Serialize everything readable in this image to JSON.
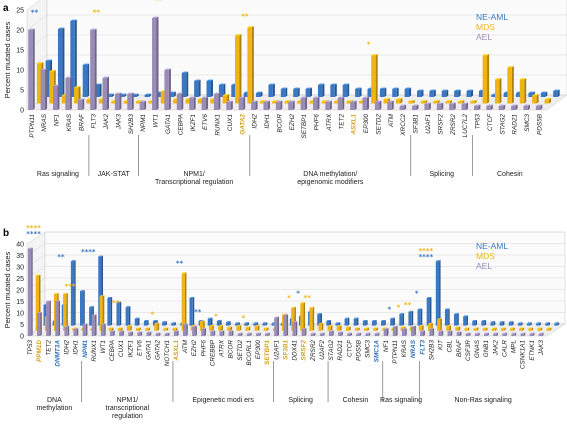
{
  "colors": {
    "ne_aml": "#3a78c3",
    "mds": "#f0b415",
    "ael": "#9a8cb8"
  },
  "chart_data": [
    {
      "panel": "a",
      "type": "bar",
      "ylabel": "Percent mutated cases",
      "ylim": [
        0,
        25
      ],
      "yticks": [
        0,
        5,
        10,
        15,
        20,
        25
      ],
      "legend": {
        "placement": "top-right",
        "entries": [
          "NE-AML",
          "MDS",
          "AEL"
        ]
      },
      "series_order": [
        "AEL",
        "MDS",
        "NE-AML"
      ],
      "categories": [
        {
          "gene": "PTPN11",
          "AEL": 20.0,
          "MDS": 10.0,
          "NE-AML": 9.0,
          "stars_b": "**"
        },
        {
          "gene": "NRAS",
          "AEL": 10.0,
          "MDS": 8.0,
          "NE-AML": 17.0
        },
        {
          "gene": "NF1",
          "AEL": 6.0,
          "MDS": 2.0,
          "NE-AML": 19.0
        },
        {
          "gene": "KRAS",
          "AEL": 8.0,
          "MDS": 4.0,
          "NE-AML": 8.0
        },
        {
          "gene": "BRAF",
          "AEL": 2.5,
          "MDS": 1.0,
          "NE-AML": 3.0
        },
        {
          "gene": "FLT3",
          "AEL": 20.0,
          "MDS": 1.0,
          "NE-AML": 0.5,
          "stars_y": "**"
        },
        {
          "gene": "JAK2",
          "AEL": 8.0,
          "MDS": 0.5,
          "NE-AML": 0.5
        },
        {
          "gene": "JAK3",
          "AEL": 4.0,
          "MDS": 0.5,
          "NE-AML": 0.5
        },
        {
          "gene": "SH2B3",
          "AEL": 4.0,
          "MDS": 0.5,
          "NE-AML": 0.5
        },
        {
          "gene": "NPM1",
          "AEL": 2.0,
          "MDS": 0.5,
          "NE-AML": 1.0
        },
        {
          "gene": "WT1",
          "AEL": 23.0,
          "MDS": 3.0,
          "NE-AML": 1.0,
          "stars_y": "**"
        },
        {
          "gene": "GATA1",
          "AEL": 10.0,
          "MDS": 1.0,
          "NE-AML": 6.0
        },
        {
          "gene": "CEBPA",
          "AEL": 4.0,
          "MDS": 1.0,
          "NE-AML": 4.0
        },
        {
          "gene": "IKZF1",
          "AEL": 3.0,
          "MDS": 1.0,
          "NE-AML": 4.0
        },
        {
          "gene": "ETV6",
          "AEL": 3.0,
          "MDS": 1.0,
          "NE-AML": 3.0
        },
        {
          "gene": "RUNX1",
          "AEL": 4.0,
          "MDS": 2.0,
          "NE-AML": 3.0
        },
        {
          "gene": "CUX1",
          "AEL": 2.0,
          "MDS": 17.0,
          "NE-AML": 1.0
        },
        {
          "gene": "GATA2",
          "AEL": 3.0,
          "MDS": 19.0,
          "NE-AML": 1.0,
          "stars_y": "**",
          "highlight": "y"
        },
        {
          "gene": "IDH2",
          "AEL": 2.0,
          "MDS": 0.5,
          "NE-AML": 3.0
        },
        {
          "gene": "IDH1",
          "AEL": 2.0,
          "MDS": 0.5,
          "NE-AML": 2.0
        },
        {
          "gene": "BCOR",
          "AEL": 2.0,
          "MDS": 0.5,
          "NE-AML": 2.0
        },
        {
          "gene": "EZH2",
          "AEL": 2.0,
          "MDS": 0.5,
          "NE-AML": 2.0
        },
        {
          "gene": "SETBP1",
          "AEL": 3.0,
          "MDS": 0.5,
          "NE-AML": 3.0
        },
        {
          "gene": "PHF6",
          "AEL": 3.0,
          "MDS": 0.5,
          "NE-AML": 3.0
        },
        {
          "gene": "ATRX",
          "AEL": 2.0,
          "MDS": 0.5,
          "NE-AML": 3.0
        },
        {
          "gene": "TET2",
          "AEL": 3.0,
          "MDS": 0.5,
          "NE-AML": 2.0
        },
        {
          "gene": "ASXL1",
          "AEL": 2.0,
          "MDS": 0.5,
          "NE-AML": 2.0,
          "highlight": "y"
        },
        {
          "gene": "EP300",
          "AEL": 3.0,
          "MDS": 12.0,
          "NE-AML": 2.0,
          "stars_y": "*"
        },
        {
          "gene": "SETD2",
          "AEL": 2.0,
          "MDS": 1.0,
          "NE-AML": 2.0
        },
        {
          "gene": "ATM",
          "AEL": 2.0,
          "MDS": 1.0,
          "NE-AML": 2.0
        },
        {
          "gene": "XRCC2",
          "AEL": 1.0,
          "MDS": 0.5,
          "NE-AML": 1.5
        },
        {
          "gene": "SF3B1",
          "AEL": 1.0,
          "MDS": 0.5,
          "NE-AML": 1.5
        },
        {
          "gene": "U2AF1",
          "AEL": 1.5,
          "MDS": 0.5,
          "NE-AML": 1.5
        },
        {
          "gene": "SRSF2",
          "AEL": 1.5,
          "MDS": 0.5,
          "NE-AML": 1.5
        },
        {
          "gene": "ZRSR2",
          "AEL": 1.5,
          "MDS": 0.5,
          "NE-AML": 1.5
        },
        {
          "gene": "LUC7L2",
          "AEL": 1.5,
          "MDS": 0.5,
          "NE-AML": 1.5
        },
        {
          "gene": "TP53",
          "AEL": 1.0,
          "MDS": 12.0,
          "NE-AML": 0.5
        },
        {
          "gene": "CTCF",
          "AEL": 1.0,
          "MDS": 6.0,
          "NE-AML": 1.0
        },
        {
          "gene": "STAG2",
          "AEL": 1.0,
          "MDS": 9.0,
          "NE-AML": 1.0
        },
        {
          "gene": "RAD21",
          "AEL": 1.0,
          "MDS": 6.0,
          "NE-AML": 1.0
        },
        {
          "gene": "SMC3",
          "AEL": 1.0,
          "MDS": 2.0,
          "NE-AML": 1.0
        },
        {
          "gene": "PDS5B",
          "AEL": 1.0,
          "MDS": 1.0,
          "NE-AML": 1.5
        }
      ],
      "groups": [
        {
          "label": "Ras signaling",
          "from": 0,
          "to": 4
        },
        {
          "label": "JAK-STAT",
          "from": 5,
          "to": 8
        },
        {
          "label": "NPM1/",
          "label2": "Transcriptional regulation",
          "from": 9,
          "to": 17
        },
        {
          "label": "DNA methylation/",
          "label2": "epigenomic modifiers",
          "from": 18,
          "to": 30
        },
        {
          "label": "Splicing",
          "from": 31,
          "to": 35
        },
        {
          "label": "Cohesin",
          "from": 36,
          "to": 41
        }
      ]
    },
    {
      "panel": "b",
      "type": "bar",
      "ylabel": "Percent mutated cases",
      "ylim": [
        0,
        40
      ],
      "yticks": [
        0,
        5,
        10,
        15,
        20,
        25,
        30,
        35,
        40
      ],
      "legend": {
        "placement": "top-right",
        "entries": [
          "NE-AML",
          "MDS",
          "AEL"
        ]
      },
      "series_order": [
        "AEL",
        "MDS",
        "NE-AML"
      ],
      "categories": [
        {
          "gene": "TP53",
          "AEL": 38.0,
          "MDS": 24.0,
          "NE-AML": 9.0,
          "stars_b": "****",
          "stars_y": "****"
        },
        {
          "gene": "PPM1D",
          "AEL": 10.0,
          "MDS": 6.0,
          "NE-AML": 2.0,
          "highlight": "y"
        },
        {
          "gene": "TET2",
          "AEL": 15.0,
          "MDS": 16.0,
          "NE-AML": 9.0
        },
        {
          "gene": "DNMT3A",
          "AEL": 15.0,
          "MDS": 16.0,
          "NE-AML": 28.0,
          "stars_b": "**",
          "highlight": "b"
        },
        {
          "gene": "IDH2",
          "AEL": 4.0,
          "MDS": 1.0,
          "NE-AML": 15.0,
          "stars_y": "***"
        },
        {
          "gene": "IDH1",
          "AEL": 3.0,
          "MDS": 1.0,
          "NE-AML": 8.0
        },
        {
          "gene": "NPM1",
          "AEL": 5.0,
          "MDS": 1.0,
          "NE-AML": 30.0,
          "stars_b": "****",
          "highlight": "b"
        },
        {
          "gene": "RUNX1",
          "AEL": 9.0,
          "MDS": 15.0,
          "NE-AML": 12.0
        },
        {
          "gene": "WT1",
          "AEL": 5.0,
          "MDS": 1.0,
          "NE-AML": 10.0
        },
        {
          "gene": "CEBPA",
          "AEL": 2.0,
          "MDS": 1.0,
          "NE-AML": 8.0,
          "stars_y": "**"
        },
        {
          "gene": "CUX1",
          "AEL": 2.0,
          "MDS": 2.0,
          "NE-AML": 3.0
        },
        {
          "gene": "IKZF1",
          "AEL": 1.5,
          "MDS": 1.0,
          "NE-AML": 2.0
        },
        {
          "gene": "ETV6",
          "AEL": 1.5,
          "MDS": 1.0,
          "NE-AML": 2.0
        },
        {
          "gene": "GATA1",
          "AEL": 1.5,
          "MDS": 3.0,
          "NE-AML": 1.5,
          "stars_y": "*"
        },
        {
          "gene": "GATA2",
          "AEL": 1.0,
          "MDS": 1.0,
          "NE-AML": 1.0
        },
        {
          "gene": "NOTCH1",
          "AEL": 1.0,
          "MDS": 1.0,
          "NE-AML": 1.0
        },
        {
          "gene": "ASXL1",
          "AEL": 2.0,
          "MDS": 25.0,
          "NE-AML": 12.0,
          "stars_b": "**",
          "highlight": "y"
        },
        {
          "gene": "ATM",
          "AEL": 5.0,
          "MDS": 2.0,
          "NE-AML": 2.0
        },
        {
          "gene": "EZH2",
          "AEL": 4.0,
          "MDS": 4.0,
          "NE-AML": 3.0,
          "stars_b": "**"
        },
        {
          "gene": "PHF6",
          "AEL": 3.0,
          "MDS": 2.0,
          "NE-AML": 2.0
        },
        {
          "gene": "CREBBP",
          "AEL": 2.0,
          "MDS": 2.0,
          "NE-AML": 1.5,
          "stars_y": "*"
        },
        {
          "gene": "ATRX",
          "AEL": 2.0,
          "MDS": 1.5,
          "NE-AML": 1.0
        },
        {
          "gene": "BCOR",
          "AEL": 2.0,
          "MDS": 2.0,
          "NE-AML": 1.0
        },
        {
          "gene": "SETD2",
          "AEL": 1.0,
          "MDS": 1.5,
          "NE-AML": 1.0,
          "stars_y": "*"
        },
        {
          "gene": "BCORL1",
          "AEL": 1.0,
          "MDS": 2.0,
          "NE-AML": 1.0
        },
        {
          "gene": "EP300",
          "AEL": 1.0,
          "MDS": 1.0,
          "NE-AML": 1.0
        },
        {
          "gene": "SETBP1",
          "AEL": 1.0,
          "MDS": 1.0,
          "NE-AML": 1.0,
          "highlight": "y"
        },
        {
          "gene": "U2AF1",
          "AEL": 8.0,
          "MDS": 7.0,
          "NE-AML": 3.0
        },
        {
          "gene": "SF3B1",
          "AEL": 9.0,
          "MDS": 10.0,
          "NE-AML": 4.0,
          "stars_y": "*",
          "highlight": "y"
        },
        {
          "gene": "DDX41",
          "AEL": 6.0,
          "MDS": 12.0,
          "NE-AML": 6.0,
          "stars_b": "*"
        },
        {
          "gene": "SRSF2",
          "AEL": 3.0,
          "MDS": 10.0,
          "NE-AML": 5.0,
          "stars_y": "**",
          "highlight": "y"
        },
        {
          "gene": "ZRSR2",
          "AEL": 1.0,
          "MDS": 3.0,
          "NE-AML": 2.0
        },
        {
          "gene": "U2AF2",
          "AEL": 1.0,
          "MDS": 2.0,
          "NE-AML": 1.0
        },
        {
          "gene": "STAG2",
          "AEL": 2.0,
          "MDS": 2.0,
          "NE-AML": 3.0
        },
        {
          "gene": "RAD21",
          "AEL": 1.5,
          "MDS": 1.5,
          "NE-AML": 3.0
        },
        {
          "gene": "CTCF",
          "AEL": 1.0,
          "MDS": 1.0,
          "NE-AML": 2.0
        },
        {
          "gene": "PDS5B",
          "AEL": 1.0,
          "MDS": 1.0,
          "NE-AML": 2.0
        },
        {
          "gene": "SMC3",
          "AEL": 1.0,
          "MDS": 1.0,
          "NE-AML": 2.0
        },
        {
          "gene": "SMC1A",
          "AEL": 1.0,
          "MDS": 1.0,
          "NE-AML": 3.0,
          "highlight": "b"
        },
        {
          "gene": "NF1",
          "AEL": 3.0,
          "MDS": 1.0,
          "NE-AML": 5.0,
          "stars_b": "*"
        },
        {
          "gene": "PTPN11",
          "AEL": 4.0,
          "MDS": 1.5,
          "NE-AML": 6.0,
          "stars_y": "*"
        },
        {
          "gene": "KRAS",
          "AEL": 3.0,
          "MDS": 1.5,
          "NE-AML": 7.0,
          "stars_y": "**"
        },
        {
          "gene": "NRAS",
          "AEL": 4.0,
          "MDS": 2.0,
          "NE-AML": 12.0,
          "stars_b": "*",
          "highlight": "b"
        },
        {
          "gene": "FLT3",
          "AEL": 2.0,
          "MDS": 3.0,
          "NE-AML": 28.0,
          "stars_b": "****",
          "stars_y": "****",
          "highlight": "b"
        },
        {
          "gene": "SH2B3",
          "AEL": 3.0,
          "MDS": 5.0,
          "NE-AML": 7.0
        },
        {
          "gene": "KIT",
          "AEL": 2.0,
          "MDS": 2.0,
          "NE-AML": 5.0
        },
        {
          "gene": "CBL",
          "AEL": 2.0,
          "MDS": 1.5,
          "NE-AML": 4.0
        },
        {
          "gene": "BRAF",
          "AEL": 1.5,
          "MDS": 1.0,
          "NE-AML": 2.0
        },
        {
          "gene": "CSF3R",
          "AEL": 1.0,
          "MDS": 1.0,
          "NE-AML": 2.0
        },
        {
          "gene": "GNAS",
          "AEL": 1.0,
          "MDS": 1.0,
          "NE-AML": 1.5
        },
        {
          "gene": "GNB1",
          "AEL": 1.0,
          "MDS": 1.0,
          "NE-AML": 1.5
        },
        {
          "gene": "JAK2",
          "AEL": 1.0,
          "MDS": 1.0,
          "NE-AML": 1.5
        },
        {
          "gene": "CALR",
          "AEL": 1.0,
          "MDS": 1.0,
          "NE-AML": 1.0
        },
        {
          "gene": "MPL",
          "AEL": 1.0,
          "MDS": 1.0,
          "NE-AML": 1.0
        },
        {
          "gene": "CSNK1A1",
          "AEL": 1.0,
          "MDS": 1.0,
          "NE-AML": 1.0
        },
        {
          "gene": "ETNK1",
          "AEL": 1.0,
          "MDS": 1.0,
          "NE-AML": 1.0
        },
        {
          "gene": "JAK3",
          "AEL": 1.0,
          "MDS": 1.0,
          "NE-AML": 1.0
        }
      ],
      "groups": [
        {
          "label": "DNA",
          "label2": "methylation",
          "from": 0,
          "to": 5
        },
        {
          "label": "NPM1/",
          "label2": "transcriptional",
          "label3": "regulation",
          "from": 6,
          "to": 15
        },
        {
          "label": "Epigenetic modi  ers",
          "from": 16,
          "to": 26
        },
        {
          "label": "Splicing",
          "from": 27,
          "to": 32
        },
        {
          "label": "Cohesin",
          "from": 33,
          "to": 38
        },
        {
          "label": "Ras signaling",
          "from": 39,
          "to": 42
        },
        {
          "label": "Non-Ras signaling",
          "from": 43,
          "to": 56
        }
      ]
    }
  ]
}
